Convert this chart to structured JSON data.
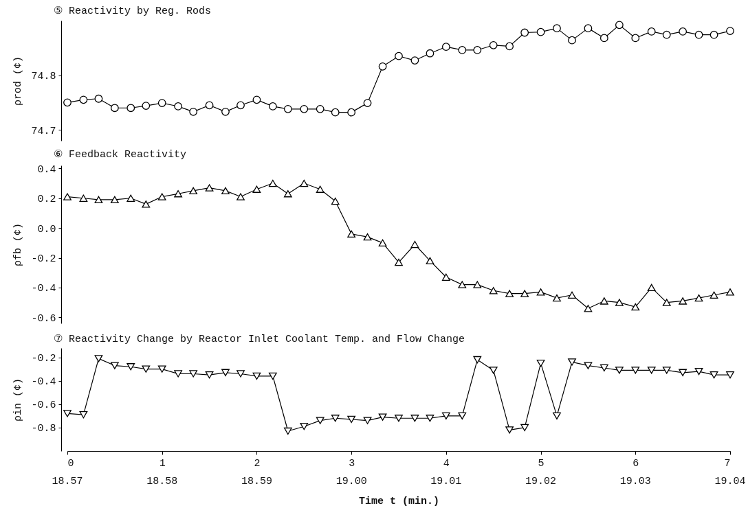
{
  "chart_data": [
    {
      "type": "line",
      "title": "⑤ Reactivity by Reg. Rods",
      "ylabel": "ρrod (¢)",
      "marker": "circle",
      "tick_labels": "y",
      "xlim": [
        0,
        7
      ],
      "ylim": [
        74.68,
        74.9
      ],
      "yticks": [
        74.7,
        74.8
      ],
      "x": [
        0,
        0.17,
        0.33,
        0.5,
        0.67,
        0.83,
        1,
        1.17,
        1.33,
        1.5,
        1.67,
        1.83,
        2,
        2.17,
        2.33,
        2.5,
        2.67,
        2.83,
        3,
        3.17,
        3.33,
        3.5,
        3.67,
        3.83,
        4,
        4.17,
        4.33,
        4.5,
        4.67,
        4.83,
        5,
        5.17,
        5.33,
        5.5,
        5.67,
        5.83,
        6,
        6.17,
        6.33,
        6.5,
        6.67,
        6.83,
        7
      ],
      "series": [
        {
          "color": "#000000",
          "values": [
            74.75,
            74.755,
            74.757,
            74.74,
            74.74,
            74.744,
            74.749,
            74.743,
            74.733,
            74.745,
            74.733,
            74.745,
            74.755,
            74.743,
            74.738,
            74.738,
            74.738,
            74.732,
            74.732,
            74.749,
            74.816,
            74.835,
            74.827,
            74.84,
            74.852,
            74.846,
            74.846,
            74.855,
            74.853,
            74.878,
            74.879,
            74.886,
            74.864,
            74.886,
            74.868,
            74.892,
            74.868,
            74.88,
            74.874,
            74.88,
            74.874,
            74.874,
            74.881
          ]
        }
      ]
    },
    {
      "type": "line",
      "title": "⑥ Feedback Reactivity",
      "ylabel": "ρfb (¢)",
      "marker": "triangle",
      "tick_labels": "y",
      "xlim": [
        0,
        7
      ],
      "ylim": [
        -0.64,
        0.42
      ],
      "yticks": [
        -0.6,
        -0.4,
        -0.2,
        {
          "value": 0,
          "label": "0.0"
        },
        0.2,
        0.4
      ],
      "x": [
        0,
        0.17,
        0.33,
        0.5,
        0.67,
        0.83,
        1,
        1.17,
        1.33,
        1.5,
        1.67,
        1.83,
        2,
        2.17,
        2.33,
        2.5,
        2.67,
        2.83,
        3,
        3.17,
        3.33,
        3.5,
        3.67,
        3.83,
        4,
        4.17,
        4.33,
        4.5,
        4.67,
        4.83,
        5,
        5.17,
        5.33,
        5.5,
        5.67,
        5.83,
        6,
        6.17,
        6.33,
        6.5,
        6.67,
        6.83,
        7
      ],
      "series": [
        {
          "color": "#000000",
          "values": [
            0.21,
            0.2,
            0.19,
            0.19,
            0.2,
            0.16,
            0.21,
            0.23,
            0.25,
            0.27,
            0.25,
            0.21,
            0.26,
            0.3,
            0.23,
            0.3,
            0.26,
            0.18,
            -0.04,
            -0.06,
            -0.1,
            -0.23,
            -0.11,
            -0.22,
            -0.33,
            -0.38,
            -0.38,
            -0.42,
            -0.44,
            -0.44,
            -0.43,
            -0.47,
            -0.45,
            -0.54,
            -0.49,
            -0.5,
            -0.53,
            -0.4,
            -0.5,
            -0.49,
            -0.47,
            -0.45,
            -0.43
          ]
        }
      ]
    },
    {
      "type": "line",
      "title": "⑦ Reactivity Change by Reactor Inlet Coolant Temp. and Flow Change",
      "ylabel": "ρin (¢)",
      "xlabel": "Time t (min.)",
      "marker": "triangle-down",
      "xlim": [
        0,
        7
      ],
      "xticks": [
        0,
        1,
        2,
        3,
        4,
        5,
        6,
        7
      ],
      "ylim": [
        -1.0,
        -0.12
      ],
      "yticks": [
        -0.8,
        -0.6,
        -0.4,
        -0.2
      ],
      "annotations": [
        "18.57",
        "18.58",
        "18.59",
        "19.00",
        "19.01",
        "19.02",
        "19.03",
        "19.04"
      ],
      "x": [
        0,
        0.17,
        0.33,
        0.5,
        0.67,
        0.83,
        1,
        1.17,
        1.33,
        1.5,
        1.67,
        1.83,
        2,
        2.17,
        2.33,
        2.5,
        2.67,
        2.83,
        3,
        3.17,
        3.33,
        3.5,
        3.67,
        3.83,
        4,
        4.17,
        4.33,
        4.5,
        4.67,
        4.83,
        5,
        5.17,
        5.33,
        5.5,
        5.67,
        5.83,
        6,
        6.17,
        6.33,
        6.5,
        6.67,
        6.83,
        7
      ],
      "series": [
        {
          "color": "#000000",
          "values": [
            -0.68,
            -0.69,
            -0.21,
            -0.27,
            -0.28,
            -0.3,
            -0.3,
            -0.34,
            -0.34,
            -0.35,
            -0.33,
            -0.34,
            -0.36,
            -0.36,
            -0.83,
            -0.79,
            -0.74,
            -0.72,
            -0.73,
            -0.74,
            -0.71,
            -0.72,
            -0.72,
            -0.72,
            -0.7,
            -0.7,
            -0.22,
            -0.31,
            -0.82,
            -0.8,
            -0.25,
            -0.7,
            -0.24,
            -0.27,
            -0.29,
            -0.31,
            -0.31,
            -0.31,
            -0.31,
            -0.33,
            -0.32,
            -0.35,
            -0.35
          ]
        }
      ]
    }
  ]
}
